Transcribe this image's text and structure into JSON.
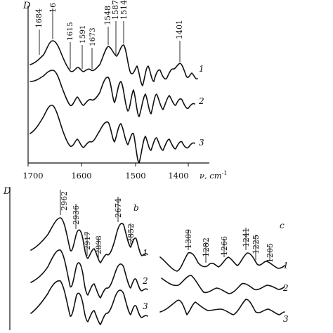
{
  "chart_data": [
    {
      "type": "line",
      "panel": "a",
      "ylabel": "D",
      "xlabel": "ν, cm",
      "xlabel_sup": "-1",
      "xlim": [
        1700,
        1340
      ],
      "x_ticks": [
        "1700",
        "1600",
        "1500",
        "1400"
      ],
      "peak_labels": [
        "1684",
        "16",
        "1615",
        "1591",
        "1673",
        "1548",
        "1587",
        "1514",
        "1401"
      ],
      "series": [
        {
          "name": "1",
          "label": "1"
        },
        {
          "name": "2",
          "label": "2"
        },
        {
          "name": "3",
          "label": "3"
        }
      ]
    },
    {
      "type": "line",
      "panel": "b",
      "panel_label": "b",
      "ylabel": "D",
      "peak_labels": [
        "2962",
        "2936",
        "2917",
        "2898",
        "2674",
        "2852"
      ],
      "series": [
        {
          "name": "1",
          "label": "1"
        },
        {
          "name": "2",
          "label": "2"
        },
        {
          "name": "3",
          "label": "3"
        }
      ]
    },
    {
      "type": "line",
      "panel": "c",
      "panel_label": "c",
      "peak_labels": [
        "1309",
        "1282",
        "1266",
        "1241",
        "1225",
        "1205"
      ],
      "series": [
        {
          "name": "1",
          "label": "1"
        },
        {
          "name": "2",
          "label": "2"
        },
        {
          "name": "3",
          "label": "3"
        }
      ]
    }
  ]
}
